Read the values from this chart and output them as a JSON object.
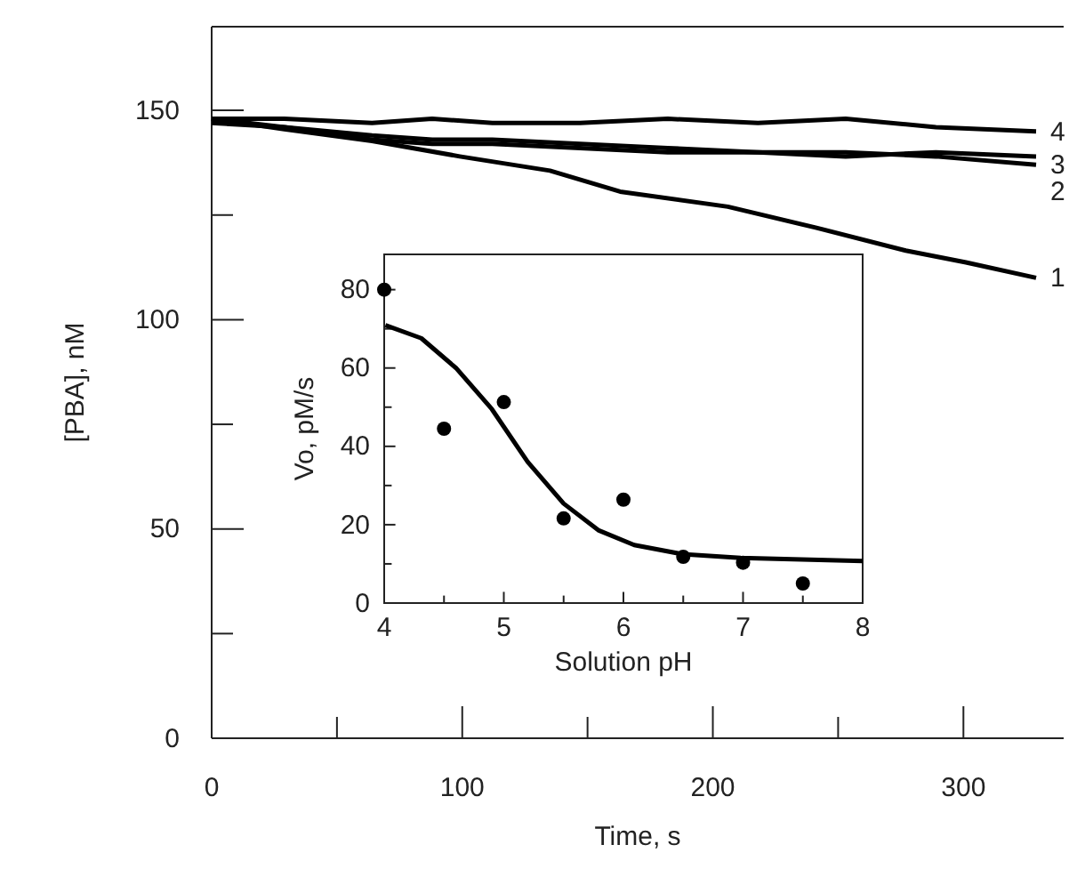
{
  "chart_data": [
    {
      "type": "line",
      "xlabel": "Time, s",
      "ylabel": "[PBA], nM",
      "xlim": [
        0,
        340
      ],
      "ylim": [
        0,
        170
      ],
      "xticks": [
        0,
        {
          "value": 50,
          "label": null
        },
        100,
        {
          "value": 150,
          "label": null
        },
        200,
        {
          "value": 250,
          "label": null
        },
        300
      ],
      "yticks": [
        0,
        {
          "value": 25,
          "label": null
        },
        50,
        {
          "value": 75,
          "label": null
        },
        100,
        {
          "value": 125,
          "label": null
        },
        150
      ],
      "series": [
        {
          "name": "4",
          "color": "#000000",
          "x": [
            0,
            29,
            64,
            88,
            112,
            147,
            182,
            218,
            253,
            289,
            329
          ],
          "values": [
            148,
            148,
            147,
            148,
            147,
            147,
            148,
            147,
            148,
            146,
            145
          ]
        },
        {
          "name": "3",
          "color": "#000000",
          "x": [
            0,
            29,
            64,
            88,
            112,
            147,
            182,
            218,
            253,
            289,
            329
          ],
          "values": [
            148,
            146,
            144,
            143,
            143,
            142,
            141,
            140,
            140,
            139,
            137
          ]
        },
        {
          "name": "2",
          "color": "#000000",
          "x": [
            0,
            29,
            64,
            88,
            112,
            147,
            182,
            218,
            253,
            289,
            329
          ],
          "values": [
            147,
            146,
            143,
            142,
            142,
            141,
            140,
            140,
            139,
            140,
            139
          ]
        },
        {
          "name": "1",
          "color": "#000000",
          "x": [
            0,
            29,
            64,
            99,
            135,
            163,
            206,
            241,
            277,
            301,
            329
          ],
          "values": [
            148,
            145.5,
            142.7,
            139,
            135.6,
            130.6,
            127,
            122,
            116.5,
            113.7,
            110
          ]
        }
      ]
    },
    {
      "type": "scatter",
      "xlabel": "Solution pH",
      "ylabel": "Vo, pM/s",
      "xlim": [
        4,
        8
      ],
      "ylim": [
        0,
        89
      ],
      "xticks": [
        4,
        {
          "value": 4.5,
          "label": null
        },
        5,
        {
          "value": 5.5,
          "label": null
        },
        6,
        {
          "value": 6.5,
          "label": null
        },
        7,
        {
          "value": 7.5,
          "label": null
        },
        8
      ],
      "yticks": [
        0,
        {
          "value": 10,
          "label": null
        },
        20,
        {
          "value": 30,
          "label": null
        },
        40,
        {
          "value": 50,
          "label": null
        },
        60,
        {
          "value": 70,
          "label": null
        },
        80
      ],
      "series": [
        {
          "color": "#000000",
          "x": [
            4,
            4.5,
            5,
            5.5,
            6,
            6.5,
            7,
            7.5
          ],
          "values": [
            80,
            44.5,
            51.3,
            21.6,
            26.4,
            11.8,
            10.3,
            5
          ]
        },
        {
          "type": "line",
          "color": "#000000",
          "x": [
            4.01,
            4.31,
            4.6,
            4.9,
            5.2,
            5.5,
            5.79,
            6.09,
            6.49,
            6.98,
            8
          ],
          "values": [
            70.9,
            67.6,
            60,
            49.5,
            36,
            25.4,
            18.6,
            14.8,
            12.5,
            11.5,
            10.7
          ]
        }
      ]
    }
  ]
}
